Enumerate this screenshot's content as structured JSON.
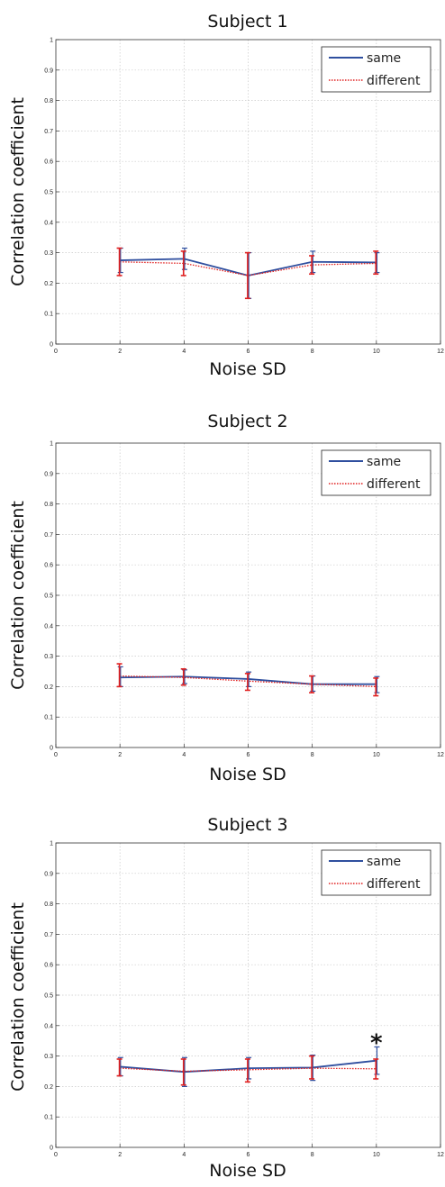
{
  "chart_data": [
    {
      "type": "line",
      "title": "Subject 1",
      "xlabel": "Noise SD",
      "ylabel": "Correlation coefficient",
      "xlim": [
        0,
        12
      ],
      "ylim": [
        0,
        1
      ],
      "xticks": [
        0,
        2,
        4,
        6,
        8,
        10,
        12
      ],
      "yticks": [
        0,
        0.1,
        0.2,
        0.3,
        0.4,
        0.5,
        0.6,
        0.7,
        0.8,
        0.9,
        1
      ],
      "grid": true,
      "legend": "top-right",
      "series": [
        {
          "name": "same",
          "color": "#2f4f9f",
          "style": "solid",
          "x": [
            2,
            4,
            6,
            8,
            10
          ],
          "y": [
            0.275,
            0.28,
            0.225,
            0.27,
            0.268
          ],
          "err_low": [
            0.235,
            0.245,
            0.15,
            0.235,
            0.235
          ],
          "err_high": [
            0.315,
            0.315,
            0.3,
            0.305,
            0.3
          ]
        },
        {
          "name": "different",
          "color": "#e02020",
          "style": "dotted",
          "x": [
            2,
            4,
            6,
            8,
            10
          ],
          "y": [
            0.27,
            0.265,
            0.225,
            0.26,
            0.265
          ],
          "err_low": [
            0.225,
            0.225,
            0.15,
            0.23,
            0.23
          ],
          "err_high": [
            0.315,
            0.305,
            0.3,
            0.29,
            0.305
          ]
        }
      ],
      "annotations": []
    },
    {
      "type": "line",
      "title": "Subject 2",
      "xlabel": "Noise SD",
      "ylabel": "Correlation coefficient",
      "xlim": [
        0,
        12
      ],
      "ylim": [
        0,
        1
      ],
      "xticks": [
        0,
        2,
        4,
        6,
        8,
        10,
        12
      ],
      "yticks": [
        0,
        0.1,
        0.2,
        0.3,
        0.4,
        0.5,
        0.6,
        0.7,
        0.8,
        0.9,
        1
      ],
      "grid": true,
      "legend": "top-right",
      "series": [
        {
          "name": "same",
          "color": "#2f4f9f",
          "style": "solid",
          "x": [
            2,
            4,
            6,
            8,
            10
          ],
          "y": [
            0.23,
            0.233,
            0.225,
            0.208,
            0.208
          ],
          "err_low": [
            0.2,
            0.21,
            0.2,
            0.185,
            0.18
          ],
          "err_high": [
            0.265,
            0.255,
            0.248,
            0.235,
            0.233
          ]
        },
        {
          "name": "different",
          "color": "#e02020",
          "style": "dotted",
          "x": [
            2,
            4,
            6,
            8,
            10
          ],
          "y": [
            0.235,
            0.23,
            0.218,
            0.208,
            0.2
          ],
          "err_low": [
            0.2,
            0.205,
            0.188,
            0.18,
            0.17
          ],
          "err_high": [
            0.275,
            0.258,
            0.243,
            0.235,
            0.228
          ]
        }
      ],
      "annotations": []
    },
    {
      "type": "line",
      "title": "Subject 3",
      "xlabel": "Noise SD",
      "ylabel": "Correlation coefficient",
      "xlim": [
        0,
        12
      ],
      "ylim": [
        0,
        1
      ],
      "xticks": [
        0,
        2,
        4,
        6,
        8,
        10,
        12
      ],
      "yticks": [
        0,
        0.1,
        0.2,
        0.3,
        0.4,
        0.5,
        0.6,
        0.7,
        0.8,
        0.9,
        1
      ],
      "grid": true,
      "legend": "top-right",
      "series": [
        {
          "name": "same",
          "color": "#2f4f9f",
          "style": "solid",
          "x": [
            2,
            4,
            6,
            8,
            10
          ],
          "y": [
            0.265,
            0.248,
            0.26,
            0.262,
            0.285
          ],
          "err_low": [
            0.235,
            0.2,
            0.225,
            0.22,
            0.24
          ],
          "err_high": [
            0.295,
            0.295,
            0.295,
            0.303,
            0.33
          ]
        },
        {
          "name": "different",
          "color": "#e02020",
          "style": "dotted",
          "x": [
            2,
            4,
            6,
            8,
            10
          ],
          "y": [
            0.26,
            0.25,
            0.255,
            0.26,
            0.258
          ],
          "err_low": [
            0.235,
            0.205,
            0.215,
            0.225,
            0.225
          ],
          "err_high": [
            0.29,
            0.29,
            0.29,
            0.3,
            0.29
          ]
        }
      ],
      "annotations": [
        {
          "text": "*",
          "x": 10,
          "y": 0.36
        }
      ]
    }
  ]
}
